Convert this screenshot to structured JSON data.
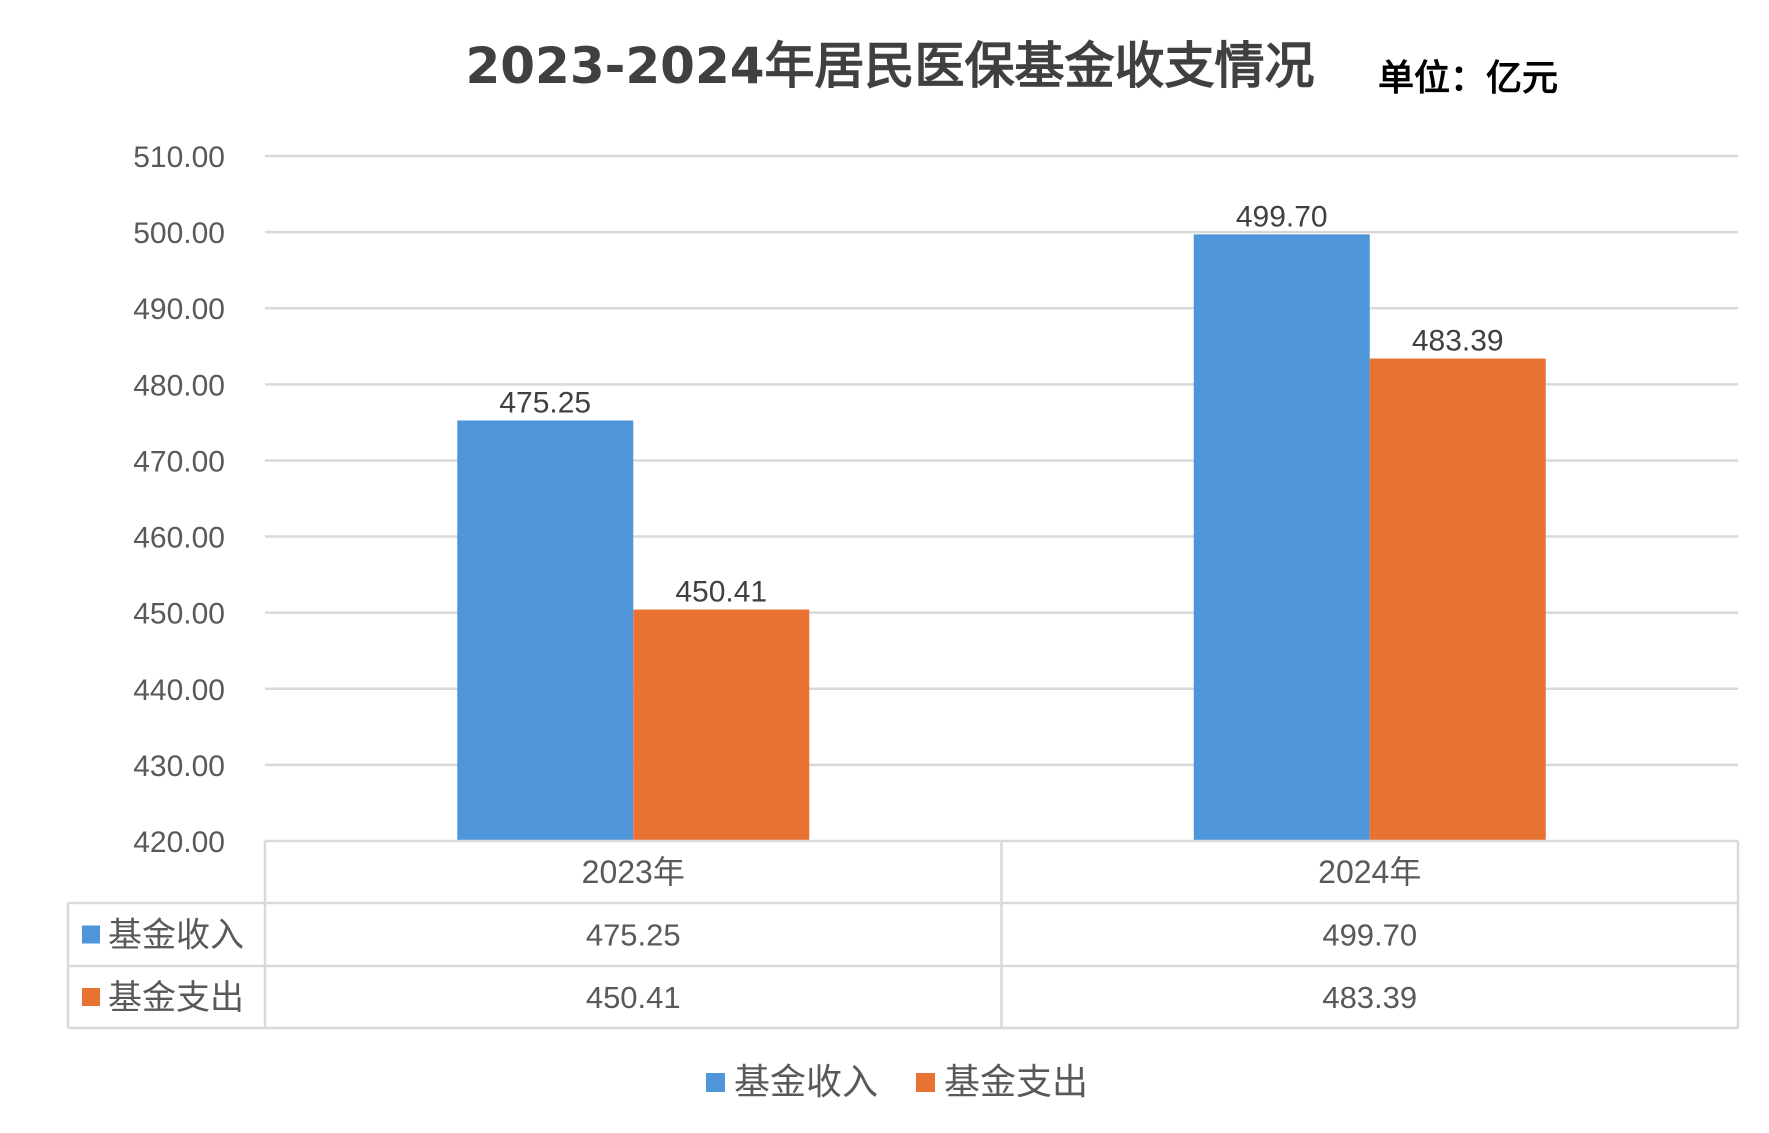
{
  "chart_data": {
    "type": "bar",
    "title": "2023-2024年居民医保基金收支情况",
    "unit_label": "单位：亿元",
    "categories": [
      "2023年",
      "2024年"
    ],
    "series": [
      {
        "name": "基金收入",
        "values": [
          475.25,
          499.7
        ],
        "labels": [
          "475.25",
          "499.70"
        ],
        "color": "#4F95DA"
      },
      {
        "name": "基金支出",
        "values": [
          450.41,
          483.39
        ],
        "labels": [
          "450.41",
          "483.39"
        ],
        "color": "#E87232"
      }
    ],
    "ylim": [
      420,
      510
    ],
    "yticks": [
      "420.00",
      "430.00",
      "440.00",
      "450.00",
      "460.00",
      "470.00",
      "480.00",
      "490.00",
      "500.00",
      "510.00"
    ],
    "grid": true,
    "legend_position": "bottom",
    "data_table": true,
    "colors": {
      "gridline": "#D9D9D9",
      "table_border": "#D9D9D9"
    }
  }
}
